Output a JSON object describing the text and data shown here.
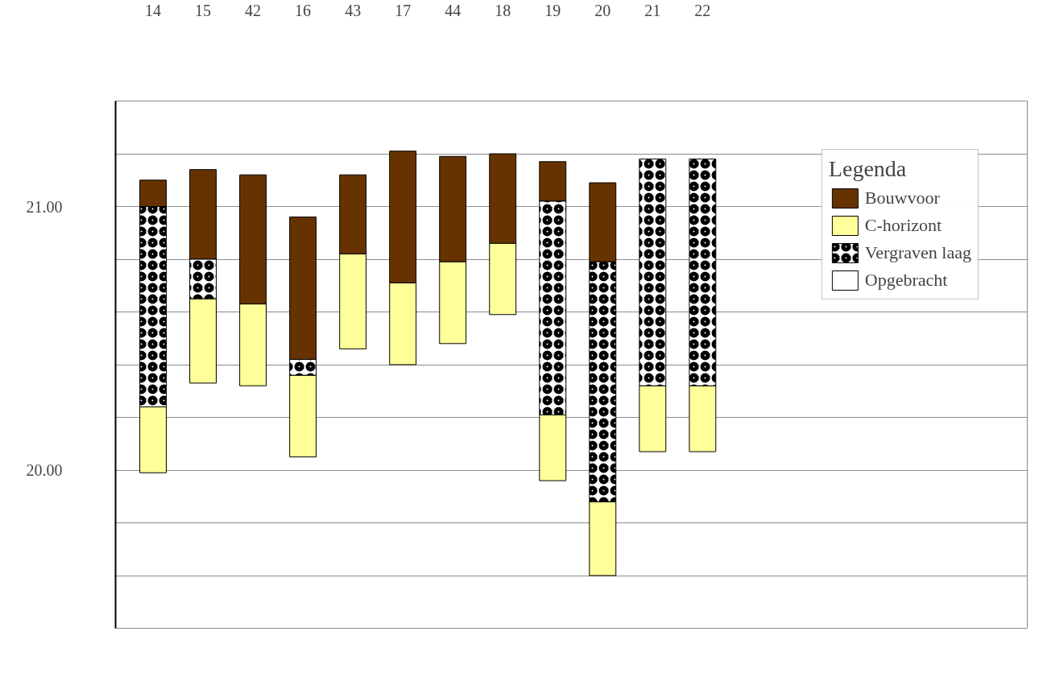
{
  "chart_data": {
    "type": "bar",
    "categories": [
      "14",
      "15",
      "42",
      "16",
      "43",
      "17",
      "44",
      "18",
      "19",
      "20",
      "21",
      "22"
    ],
    "ylim": [
      19.4,
      21.4
    ],
    "yticks": [
      {
        "value": 19.4,
        "label": null
      },
      {
        "value": 19.6,
        "label": null
      },
      {
        "value": 19.8,
        "label": null
      },
      {
        "value": 20.0,
        "label": "20.00"
      },
      {
        "value": 20.2,
        "label": null
      },
      {
        "value": 20.4,
        "label": null
      },
      {
        "value": 20.6,
        "label": null
      },
      {
        "value": 20.8,
        "label": null
      },
      {
        "value": 21.0,
        "label": "21.00"
      },
      {
        "value": 21.2,
        "label": null
      },
      {
        "value": 21.4,
        "label": null
      }
    ],
    "series": [
      {
        "name": "Bouwvoor",
        "color": "#663300",
        "base": [
          21.0,
          20.8,
          20.63,
          20.42,
          20.82,
          20.71,
          20.79,
          20.86,
          21.02,
          20.79,
          null,
          null
        ],
        "values": [
          0.1,
          0.34,
          0.49,
          0.54,
          0.3,
          0.5,
          0.4,
          0.34,
          0.15,
          0.3,
          null,
          null
        ]
      },
      {
        "name": "C-horizont",
        "color": "#ffff99",
        "base": [
          19.99,
          20.33,
          20.32,
          20.05,
          20.46,
          20.4,
          20.48,
          20.59,
          19.96,
          19.6,
          20.07,
          20.07
        ],
        "values": [
          0.25,
          0.32,
          0.31,
          0.31,
          0.36,
          0.31,
          0.31,
          0.27,
          0.25,
          0.28,
          0.25,
          0.25
        ]
      },
      {
        "name": "Vergraven laag",
        "color": "#ffffff",
        "base": [
          20.24,
          20.65,
          null,
          20.36,
          null,
          null,
          null,
          null,
          20.21,
          19.88,
          20.32,
          20.32
        ],
        "values": [
          0.76,
          0.15,
          null,
          0.06,
          null,
          null,
          null,
          null,
          0.81,
          0.91,
          0.86,
          0.86
        ]
      },
      {
        "name": "Opgebracht",
        "color": "#ffffff",
        "values": [
          null,
          null,
          null,
          null,
          null,
          null,
          null,
          null,
          null,
          null,
          null,
          null
        ]
      }
    ],
    "legend": "top right",
    "legend_title": "Legenda",
    "grid": "y"
  }
}
